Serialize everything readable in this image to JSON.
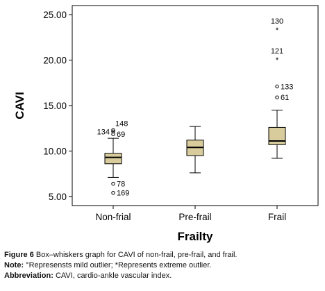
{
  "chart_data": {
    "type": "box",
    "ylabel": "CAVI",
    "xlabel": "Frailty",
    "ylim": [
      4.0,
      26.0
    ],
    "yticks": [
      "5.00",
      "10.00",
      "15.00",
      "20.00",
      "25.00"
    ],
    "grid": false,
    "fill_color": "#d8cc9c",
    "categories": [
      "Non-frial",
      "Pre-frail",
      "Frail"
    ],
    "boxes": [
      {
        "category": "Non-frial",
        "whisker_low": 7.1,
        "q1": 8.6,
        "median": 9.3,
        "q3": 9.75,
        "whisker_high": 11.4,
        "outliers": [
          {
            "value": 12.3,
            "label": "148",
            "marker": "o"
          },
          {
            "value": 12.15,
            "label": "134",
            "marker": "o"
          },
          {
            "value": 11.85,
            "label": "69",
            "marker": "o"
          },
          {
            "value": 6.4,
            "label": "78",
            "marker": "o"
          },
          {
            "value": 5.4,
            "label": "169",
            "marker": "o"
          }
        ]
      },
      {
        "category": "Pre-frail",
        "whisker_low": 7.6,
        "q1": 9.5,
        "median": 10.4,
        "q3": 11.2,
        "whisker_high": 12.7,
        "outliers": []
      },
      {
        "category": "Frail",
        "whisker_low": 9.2,
        "q1": 10.7,
        "median": 11.1,
        "q3": 12.6,
        "whisker_high": 14.5,
        "outliers": [
          {
            "value": 23.4,
            "label": "130",
            "marker": "*"
          },
          {
            "value": 20.1,
            "label": "121",
            "marker": "*"
          },
          {
            "value": 17.1,
            "label": "133",
            "marker": "o"
          },
          {
            "value": 15.9,
            "label": "61",
            "marker": "o"
          }
        ]
      }
    ]
  },
  "caption": {
    "figure_label": "Figure 6",
    "figure_text": "Box–whiskers graph for CAVI of non-frail, pre-frail, and frail.",
    "note_label": "Note:",
    "note_text": "°Represensts mild outlier; *Represents extreme outlier.",
    "abbr_label": "Abbreviation:",
    "abbr_text": "CAVI, cardio-ankle vascular index."
  }
}
